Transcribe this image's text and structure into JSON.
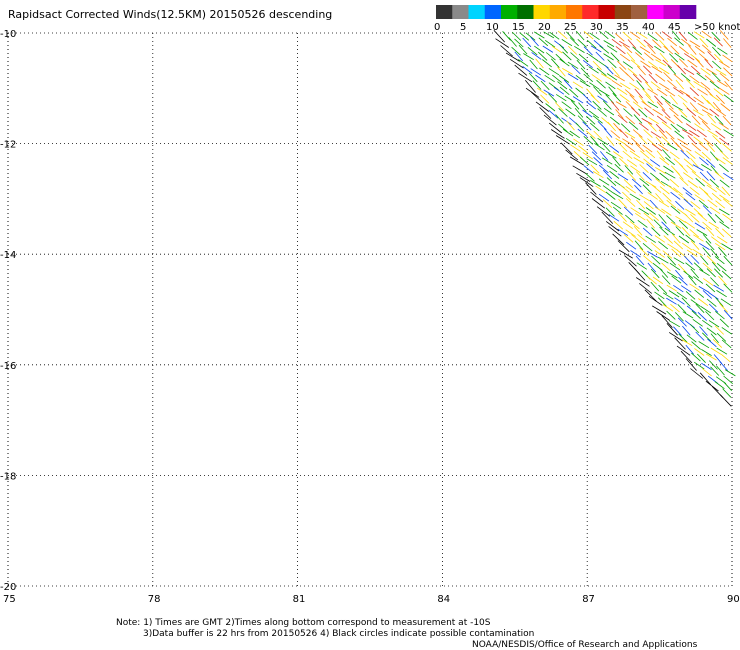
{
  "title": "Rapidsact Corrected Winds(12.5KM) 20150526 descending",
  "legend": {
    "labels": [
      "0",
      "5",
      "10",
      "15",
      "20",
      "25",
      "30",
      "35",
      "40",
      "45",
      ">50 knots"
    ],
    "colors": [
      "#333333",
      "#8a8a8a",
      "#00d4ff",
      "#0066ff",
      "#00b000",
      "#007000",
      "#ffd700",
      "#ffaa00",
      "#ff7700",
      "#ff2a2a",
      "#c80000",
      "#8b4513",
      "#a06040",
      "#ff00ff",
      "#cc00cc",
      "#6600aa"
    ]
  },
  "map": {
    "lon_ticks": [
      "75",
      "78",
      "81",
      "84",
      "87",
      "90"
    ],
    "lat_ticks": [
      "-10",
      "-12",
      "-14",
      "-16",
      "-18",
      "-20"
    ],
    "lon_range": [
      75,
      90
    ],
    "lat_range": [
      -20,
      -10
    ],
    "grid": "dotted",
    "swath_edge": [
      [
        85.1,
        -10.0
      ],
      [
        86.5,
        -12.0
      ],
      [
        87.8,
        -14.0
      ],
      [
        89.1,
        -16.0
      ],
      [
        90.0,
        -16.8
      ]
    ]
  },
  "notes": {
    "line1": "Note: 1) Times are GMT 2)Times along bottom correspond to measurement at -10S",
    "line2": "3)Data buffer is 22 hrs from 20150526 4) Black circles indicate possible contamination",
    "credit": "NOAA/NESDIS/Office of Research and Applications"
  }
}
